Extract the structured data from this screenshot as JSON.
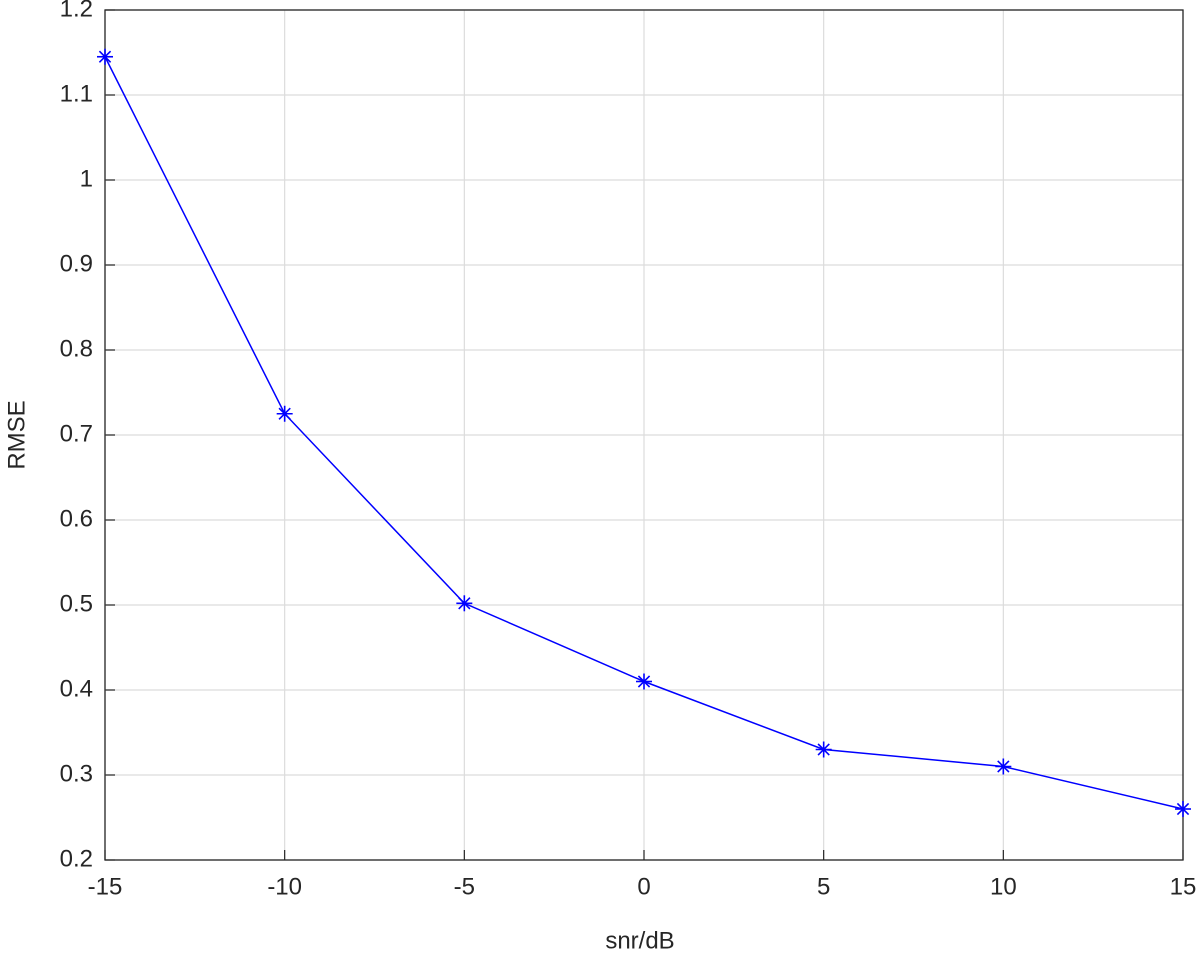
{
  "chart_data": {
    "type": "line",
    "x_label": "snr/dB",
    "y_label": "RMSE",
    "x": [
      -15,
      -10,
      -5,
      0,
      5,
      10,
      15
    ],
    "series": [
      {
        "name": "RMSE",
        "color": "#0000ff",
        "marker": "asterisk",
        "values": [
          1.145,
          0.725,
          0.502,
          0.41,
          0.33,
          0.31,
          0.26
        ]
      }
    ],
    "xlim": [
      -15,
      15
    ],
    "xticks": [
      -15,
      -10,
      -5,
      0,
      5,
      10,
      15
    ],
    "ylim": [
      0.2,
      1.2
    ],
    "yticks": [
      0.2,
      0.3,
      0.4,
      0.5,
      0.6,
      0.7,
      0.8,
      0.9,
      1,
      1.1,
      1.2
    ],
    "grid": true
  }
}
